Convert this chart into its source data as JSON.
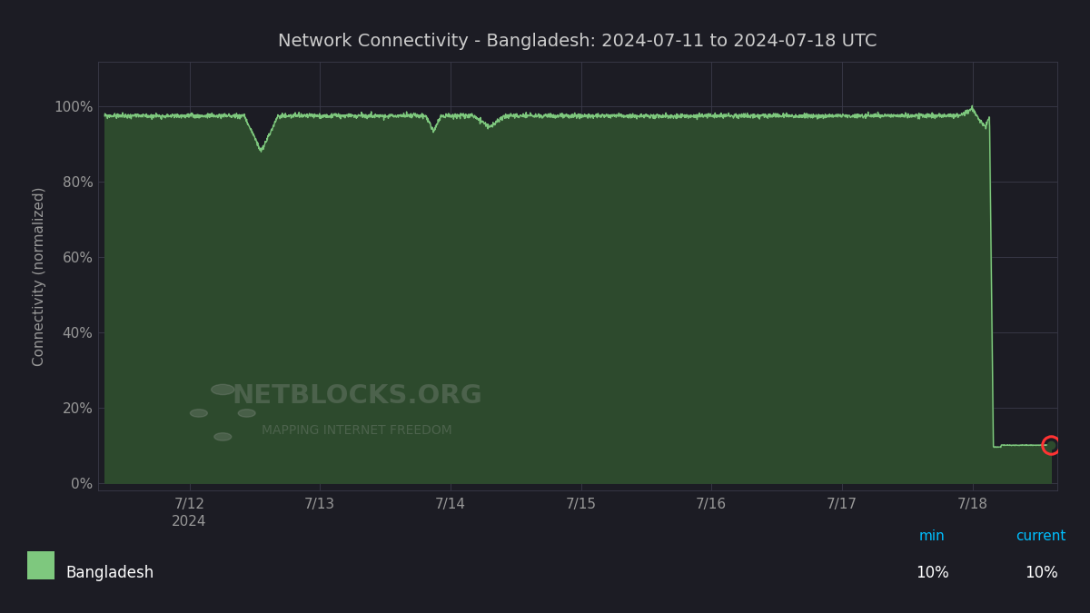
{
  "title": "Network Connectivity - Bangladesh: 2024-07-11 to 2024-07-18 UTC",
  "ylabel": "Connectivity (normalized)",
  "bg_color": "#1c1c24",
  "plot_bg_color": "#1c1c24",
  "line_color": "#7ec87e",
  "fill_color": "#2d4a2d",
  "grid_color": "#3a3a4a",
  "title_color": "#cccccc",
  "label_color": "#999999",
  "tick_color": "#999999",
  "legend_bar_color": "#2a2a34",
  "legend_label": "Bangladesh",
  "legend_min_label": "min",
  "legend_current_label": "current",
  "legend_min_value": "10%",
  "legend_current_value": "10%",
  "legend_accent_color": "#00bfff",
  "marker_color": "#ff3333",
  "watermark_text": "NETBLOCKS.ORG",
  "watermark_sub": "MAPPING INTERNET FREEDOM",
  "xtick_labels": [
    "7/12\n2024",
    "7/13",
    "7/14",
    "7/15",
    "7/16",
    "7/17",
    "7/18"
  ],
  "xtick_positions": [
    1,
    2,
    3,
    4,
    5,
    6,
    7
  ],
  "ytick_labels": [
    "0%",
    "20%",
    "40%",
    "60%",
    "80%",
    "100%"
  ],
  "ytick_positions": [
    0,
    20,
    40,
    60,
    80,
    100
  ],
  "xlim": [
    0.3,
    7.65
  ],
  "ylim": [
    -2,
    112
  ]
}
